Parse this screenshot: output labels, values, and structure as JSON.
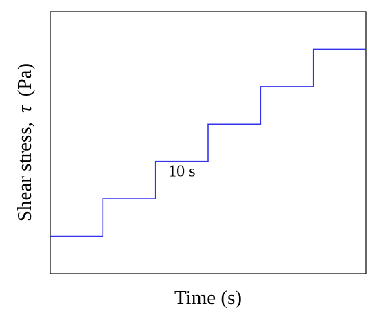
{
  "chart_data": {
    "type": "line",
    "title": "",
    "xlabel": "Time (s)",
    "ylabel_text": "Shear stress,",
    "ylabel_symbol": "τ",
    "ylabel_unit": "(Pa)",
    "xlim": [
      0,
      60
    ],
    "ylim": [
      0,
      7
    ],
    "grid": false,
    "ticks": false,
    "color": "#3333ee",
    "series": [
      {
        "x": [
          0,
          10,
          10,
          20,
          20,
          30,
          30,
          40,
          40,
          50,
          50,
          60
        ],
        "y": [
          1,
          1,
          2,
          2,
          3,
          3,
          4,
          4,
          5,
          5,
          6,
          6
        ]
      }
    ],
    "annotations": [
      {
        "text": "10 s",
        "x": 25,
        "y": 2.6
      }
    ]
  }
}
